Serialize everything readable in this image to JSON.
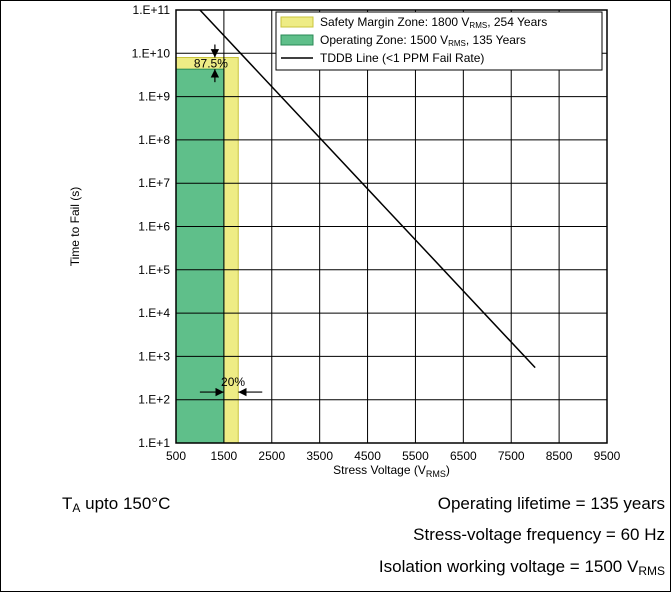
{
  "chart_data": {
    "type": "line",
    "x_axis": {
      "label": "Stress Voltage",
      "label_unit_main": "V",
      "label_unit_sub": "RMS",
      "range": [
        500,
        9500
      ],
      "ticks": [
        500,
        1500,
        2500,
        3500,
        4500,
        5500,
        6500,
        7500,
        8500,
        9500
      ],
      "tick_labels": [
        "500",
        "1500",
        "2500",
        "3500",
        "4500",
        "5500",
        "6500",
        "7500",
        "8500",
        "9500"
      ]
    },
    "y_axis": {
      "label": "Time to Fail (s)",
      "scale": "log",
      "range": [
        10,
        100000000000
      ],
      "tick_labels": [
        "1.E+1",
        "1.E+2",
        "1.E+3",
        "1.E+4",
        "1.E+5",
        "1.E+6",
        "1.E+7",
        "1.E+8",
        "1.E+9",
        "1.E+10",
        "1.E+11"
      ]
    },
    "grid": true,
    "legend_position": "top-right",
    "series": [
      {
        "kind": "area",
        "legend_main": "Safety Margin Zone: 1800 V",
        "legend_sub": "RMS",
        "legend_tail": ", 254 Years",
        "color": "#eeec85",
        "border": "#c9c43b",
        "x_range": [
          500,
          1800
        ],
        "y_top": 8000000000
      },
      {
        "kind": "area",
        "legend_main": "Operating Zone: 1500 V",
        "legend_sub": "RMS",
        "legend_tail": ", 135 Years",
        "color": "#5fbf8a",
        "border": "#2a8a55",
        "x_range": [
          500,
          1500
        ],
        "y_top": 4300000000
      },
      {
        "kind": "line",
        "legend_main": "TDDB Line (<1 PPM Fail Rate)",
        "color": "#000000",
        "points": [
          [
            1000,
            100000000000
          ],
          [
            8000,
            550
          ]
        ]
      }
    ],
    "annotations": [
      {
        "text": "87.5%",
        "x": 1500,
        "y": 4300000000,
        "type": "vertical-arrows"
      },
      {
        "text": "20%",
        "x": 1500,
        "y": 150,
        "type": "horizontal-arrows"
      }
    ]
  },
  "notes": {
    "temp_main": "T",
    "temp_sub": "A",
    "temp_tail": " upto 150°C",
    "lifetime": "Operating lifetime = 135 years",
    "frequency": "Stress-voltage frequency = 60 Hz",
    "isolation_main": "Isolation working voltage = 1500 V",
    "isolation_sub": "RMS"
  }
}
